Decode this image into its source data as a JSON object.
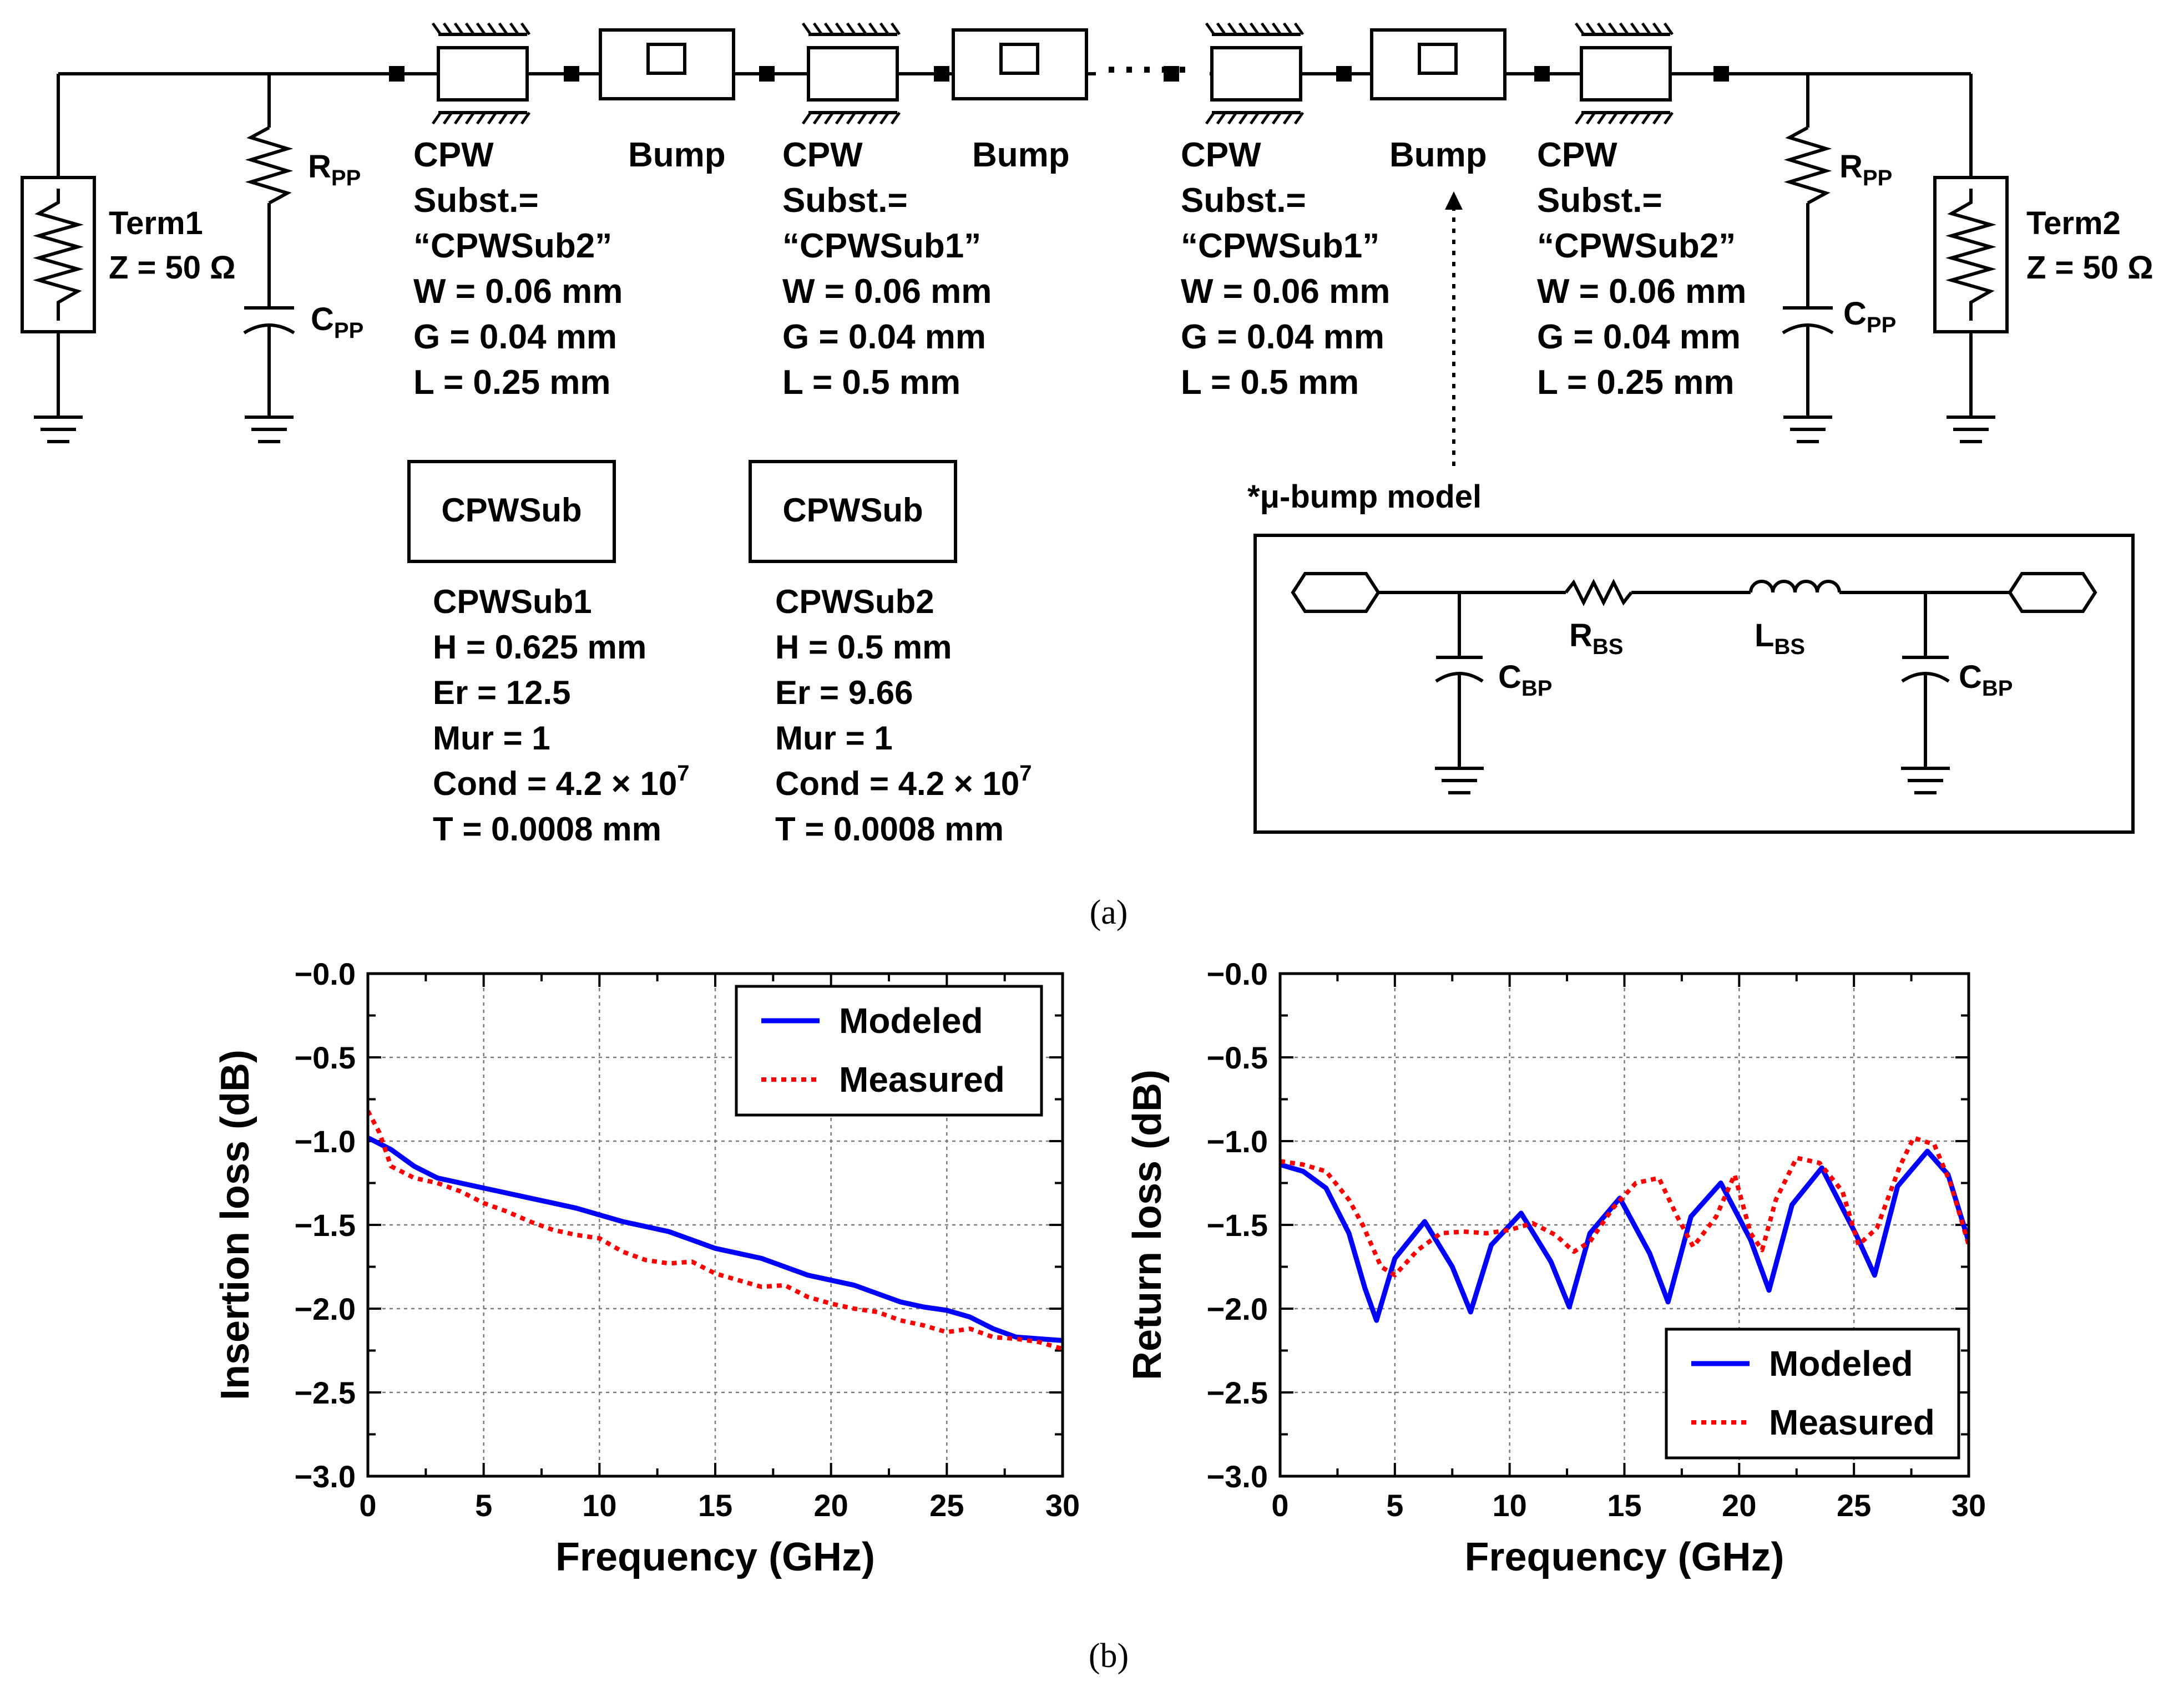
{
  "schematic": {
    "term1": {
      "name": "Term1",
      "z": "Z = 50 Ω"
    },
    "term2": {
      "name": "Term2",
      "z": "Z = 50 Ω"
    },
    "rpp": {
      "main": "R",
      "sub": "PP"
    },
    "cpp": {
      "main": "C",
      "sub": "PP"
    },
    "dots": "·····",
    "cpw_sections": [
      {
        "title": "CPW",
        "subst_label": "Subst.=",
        "subst_value": "“CPWSub2”",
        "w": "W = 0.06 mm",
        "g": "G = 0.04 mm",
        "l": "L = 0.25 mm"
      },
      {
        "title": "CPW",
        "subst_label": "Subst.=",
        "subst_value": "“CPWSub1”",
        "w": "W = 0.06 mm",
        "g": "G = 0.04 mm",
        "l": "L = 0.5 mm"
      },
      {
        "title": "CPW",
        "subst_label": "Subst.=",
        "subst_value": "“CPWSub1”",
        "w": "W = 0.06 mm",
        "g": "G = 0.04 mm",
        "l": "L = 0.5 mm"
      },
      {
        "title": "CPW",
        "subst_label": "Subst.=",
        "subst_value": "“CPWSub2”",
        "w": "W = 0.06 mm",
        "g": "G = 0.04 mm",
        "l": "L = 0.25 mm"
      }
    ],
    "bump_label": "Bump",
    "substrates": [
      {
        "box_label": "CPWSub",
        "name": "CPWSub1",
        "h": "H = 0.625 mm",
        "er": "Er = 12.5",
        "mur": "Mur = 1",
        "cond": "Cond = 4.2 × 10",
        "cond_exp": "7",
        "t": "T = 0.0008 mm"
      },
      {
        "box_label": "CPWSub",
        "name": "CPWSub2",
        "h": "H = 0.5 mm",
        "er": "Er = 9.66",
        "mur": "Mur = 1",
        "cond": "Cond = 4.2 × 10",
        "cond_exp": "7",
        "t": "T = 0.0008 mm"
      }
    ],
    "bump_model": {
      "title": "*μ-bump model",
      "cbp": {
        "main": "C",
        "sub": "BP"
      },
      "rbs": {
        "main": "R",
        "sub": "BS"
      },
      "lbs": {
        "main": "L",
        "sub": "BS"
      }
    },
    "caption": "(a)"
  },
  "caption_b": "(b)",
  "chart_data": [
    {
      "type": "line",
      "title": "",
      "xlabel": "Frequency (GHz)",
      "ylabel": "Insertion loss (dB)",
      "xlim": [
        0,
        30
      ],
      "ylim": [
        -3.0,
        0.0
      ],
      "xticks": [
        "0",
        "5",
        "10",
        "15",
        "20",
        "25",
        "30"
      ],
      "yticks": [
        "−0.0",
        "−0.5",
        "−1.0",
        "−1.5",
        "−2.0",
        "−2.5",
        "−3.0"
      ],
      "grid": true,
      "legend_position": "top-right",
      "series": [
        {
          "name": "Modeled",
          "color": "#0000ff",
          "style": "solid",
          "x": [
            0,
            1,
            2,
            3,
            4,
            5,
            6,
            7,
            8,
            9,
            10,
            11,
            12,
            13,
            14,
            15,
            16,
            17,
            18,
            19,
            20,
            21,
            22,
            23,
            24,
            25,
            26,
            27,
            28,
            29,
            30
          ],
          "y": [
            -0.98,
            -1.05,
            -1.15,
            -1.22,
            -1.25,
            -1.28,
            -1.31,
            -1.34,
            -1.37,
            -1.4,
            -1.44,
            -1.48,
            -1.51,
            -1.54,
            -1.59,
            -1.64,
            -1.67,
            -1.7,
            -1.75,
            -1.8,
            -1.83,
            -1.86,
            -1.91,
            -1.96,
            -1.99,
            -2.01,
            -2.05,
            -2.12,
            -2.17,
            -2.18,
            -2.19
          ]
        },
        {
          "name": "Measured",
          "color": "#ff0000",
          "style": "dotted",
          "x": [
            0,
            0.5,
            1,
            2,
            3,
            4,
            5,
            6,
            7,
            8,
            9,
            10,
            11,
            12,
            13,
            14,
            15,
            16,
            17,
            18,
            19,
            20,
            21,
            22,
            23,
            24,
            25,
            26,
            27,
            28,
            29,
            30
          ],
          "y": [
            -0.82,
            -0.95,
            -1.15,
            -1.22,
            -1.25,
            -1.3,
            -1.37,
            -1.42,
            -1.48,
            -1.53,
            -1.56,
            -1.58,
            -1.66,
            -1.71,
            -1.73,
            -1.72,
            -1.79,
            -1.83,
            -1.87,
            -1.86,
            -1.93,
            -1.97,
            -2.0,
            -2.02,
            -2.07,
            -2.1,
            -2.14,
            -2.12,
            -2.17,
            -2.18,
            -2.2,
            -2.24
          ]
        }
      ]
    },
    {
      "type": "line",
      "title": "",
      "xlabel": "Frequency (GHz)",
      "ylabel": "Return loss (dB)",
      "xlim": [
        0,
        30
      ],
      "ylim": [
        -3.0,
        0.0
      ],
      "xticks": [
        "0",
        "5",
        "10",
        "15",
        "20",
        "25",
        "30"
      ],
      "yticks": [
        "−0.0",
        "−0.5",
        "−1.0",
        "−1.5",
        "−2.0",
        "−2.5",
        "−3.0"
      ],
      "grid": true,
      "legend_position": "bottom-right",
      "series": [
        {
          "name": "Modeled",
          "color": "#0000ff",
          "style": "solid",
          "x": [
            0,
            1,
            2,
            3,
            3.7,
            4.2,
            5,
            6.3,
            7.5,
            8.3,
            9.2,
            10.5,
            11.8,
            12.6,
            13.5,
            14.8,
            16.1,
            16.9,
            17.9,
            19.2,
            20.5,
            21.3,
            22.3,
            23.6,
            25.1,
            25.9,
            26.9,
            28.2,
            29.1,
            30
          ],
          "y": [
            -1.14,
            -1.18,
            -1.28,
            -1.55,
            -1.88,
            -2.07,
            -1.7,
            -1.48,
            -1.75,
            -2.02,
            -1.62,
            -1.43,
            -1.72,
            -1.99,
            -1.55,
            -1.34,
            -1.67,
            -1.96,
            -1.45,
            -1.25,
            -1.59,
            -1.89,
            -1.38,
            -1.16,
            -1.56,
            -1.8,
            -1.27,
            -1.06,
            -1.2,
            -1.6
          ]
        },
        {
          "name": "Measured",
          "color": "#ff0000",
          "style": "dotted",
          "x": [
            0,
            1,
            2,
            3,
            3.6,
            4.4,
            5,
            6,
            7,
            8,
            9,
            10,
            11,
            12,
            12.8,
            13.5,
            14.5,
            15.5,
            16.5,
            17.3,
            18,
            19,
            19.8,
            20.5,
            21,
            21.6,
            22.5,
            23.5,
            24.5,
            25.2,
            26,
            27,
            27.6,
            28.5,
            29.2,
            30
          ],
          "y": [
            -1.12,
            -1.14,
            -1.18,
            -1.35,
            -1.5,
            -1.75,
            -1.8,
            -1.65,
            -1.55,
            -1.54,
            -1.55,
            -1.53,
            -1.49,
            -1.56,
            -1.66,
            -1.6,
            -1.4,
            -1.25,
            -1.22,
            -1.45,
            -1.63,
            -1.45,
            -1.2,
            -1.55,
            -1.65,
            -1.35,
            -1.1,
            -1.13,
            -1.3,
            -1.62,
            -1.52,
            -1.15,
            -0.98,
            -1.02,
            -1.25,
            -1.62
          ]
        }
      ]
    }
  ]
}
